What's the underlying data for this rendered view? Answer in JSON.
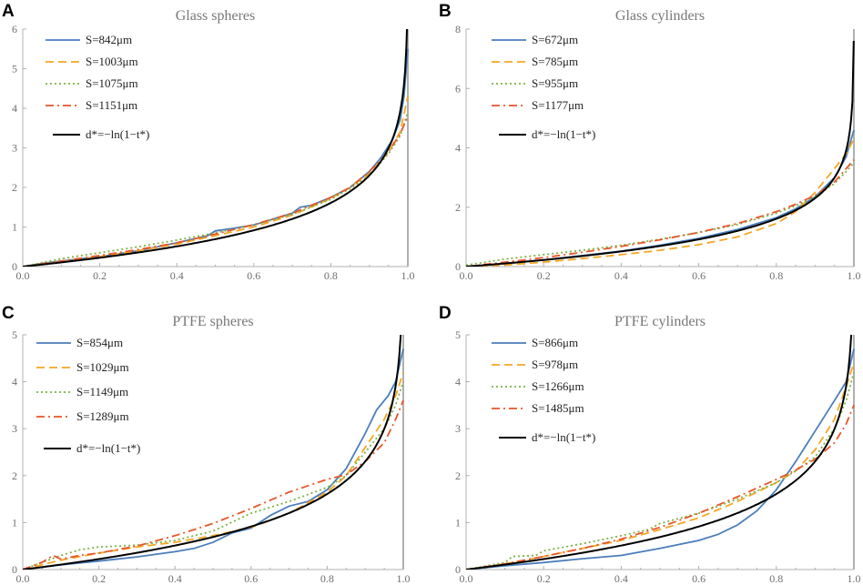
{
  "colors": {
    "series1": "#4a7ebb",
    "series2": "#f5a623",
    "series3": "#7cb342",
    "series4": "#e8562a",
    "theory": "#000000",
    "axis": "#b0b0b0",
    "ticklabel": "#6e6e6e",
    "title": "#777777"
  },
  "theory_label": "d*=−ln(1−t*)",
  "chart_data": [
    {
      "panel": "A",
      "title": "Glass spheres",
      "type": "line",
      "xlabel": "",
      "ylabel": "",
      "xlim": [
        0,
        1.0
      ],
      "ylim": [
        0,
        6
      ],
      "xticks": [
        "0.0",
        "0.2",
        "0.4",
        "0.6",
        "0.8",
        "1.0"
      ],
      "yticks": [
        "0",
        "1",
        "2",
        "3",
        "4",
        "5",
        "6"
      ],
      "series": [
        {
          "name": "S=842μm",
          "style": "solid",
          "x": [
            0,
            0.05,
            0.1,
            0.2,
            0.3,
            0.4,
            0.48,
            0.5,
            0.55,
            0.6,
            0.65,
            0.7,
            0.72,
            0.75,
            0.8,
            0.85,
            0.9,
            0.93,
            0.96,
            0.98,
            0.99,
            1.0
          ],
          "y": [
            0,
            0.08,
            0.14,
            0.25,
            0.4,
            0.6,
            0.78,
            0.9,
            0.97,
            1.05,
            1.2,
            1.35,
            1.5,
            1.55,
            1.75,
            2.0,
            2.4,
            2.75,
            3.2,
            3.7,
            4.3,
            5.5
          ]
        },
        {
          "name": "S=1003μm",
          "style": "dashed",
          "x": [
            0,
            0.1,
            0.2,
            0.3,
            0.4,
            0.5,
            0.6,
            0.7,
            0.8,
            0.85,
            0.9,
            0.95,
            0.98,
            1.0
          ],
          "y": [
            0,
            0.12,
            0.25,
            0.4,
            0.57,
            0.78,
            1.0,
            1.3,
            1.72,
            2.0,
            2.35,
            2.9,
            3.4,
            4.3
          ]
        },
        {
          "name": "S=1075μm",
          "style": "dotted",
          "x": [
            0,
            0.1,
            0.2,
            0.3,
            0.4,
            0.5,
            0.6,
            0.7,
            0.8,
            0.85,
            0.9,
            0.95,
            0.98,
            1.0
          ],
          "y": [
            0,
            0.2,
            0.35,
            0.5,
            0.67,
            0.85,
            1.05,
            1.32,
            1.7,
            1.97,
            2.3,
            2.85,
            3.3,
            3.9
          ]
        },
        {
          "name": "S=1151μm",
          "style": "dashdot",
          "x": [
            0,
            0.1,
            0.2,
            0.3,
            0.4,
            0.5,
            0.6,
            0.7,
            0.8,
            0.85,
            0.9,
            0.95,
            0.98,
            1.0
          ],
          "y": [
            0,
            0.14,
            0.28,
            0.43,
            0.6,
            0.82,
            1.06,
            1.35,
            1.75,
            2.0,
            2.4,
            2.9,
            3.35,
            3.8
          ]
        }
      ],
      "theory": {
        "name": "d*=−ln(1−t*)",
        "ymax": 6
      }
    },
    {
      "panel": "B",
      "title": "Glass cylinders",
      "type": "line",
      "xlabel": "",
      "ylabel": "",
      "xlim": [
        0,
        1.0
      ],
      "ylim": [
        0,
        8
      ],
      "xticks": [
        "0.0",
        "0.2",
        "0.4",
        "0.6",
        "0.8",
        "1.0"
      ],
      "yticks": [
        "0",
        "2",
        "4",
        "6",
        "8"
      ],
      "series": [
        {
          "name": "S=672μm",
          "style": "solid",
          "x": [
            0,
            0.1,
            0.2,
            0.3,
            0.4,
            0.5,
            0.6,
            0.7,
            0.8,
            0.85,
            0.9,
            0.95,
            0.98,
            1.0
          ],
          "y": [
            0,
            0.1,
            0.22,
            0.37,
            0.52,
            0.72,
            0.95,
            1.25,
            1.65,
            1.95,
            2.35,
            3.0,
            3.7,
            4.6
          ]
        },
        {
          "name": "S=785μm",
          "style": "dashed",
          "x": [
            0,
            0.1,
            0.2,
            0.3,
            0.4,
            0.5,
            0.6,
            0.7,
            0.8,
            0.85,
            0.9,
            0.95,
            0.98,
            1.0
          ],
          "y": [
            0,
            0.05,
            0.15,
            0.27,
            0.4,
            0.55,
            0.74,
            1.0,
            1.45,
            1.85,
            2.5,
            3.3,
            3.8,
            4.3
          ]
        },
        {
          "name": "S=955μm",
          "style": "dotted",
          "x": [
            0,
            0.1,
            0.2,
            0.3,
            0.4,
            0.5,
            0.6,
            0.7,
            0.8,
            0.85,
            0.9,
            0.95,
            0.98,
            1.0
          ],
          "y": [
            0.05,
            0.25,
            0.4,
            0.55,
            0.72,
            0.92,
            1.15,
            1.42,
            1.8,
            2.05,
            2.35,
            2.8,
            3.2,
            3.5
          ]
        },
        {
          "name": "S=1177μm",
          "style": "dashdot",
          "x": [
            0,
            0.1,
            0.2,
            0.3,
            0.4,
            0.5,
            0.6,
            0.7,
            0.8,
            0.85,
            0.9,
            0.95,
            0.98,
            1.0
          ],
          "y": [
            0,
            0.15,
            0.3,
            0.48,
            0.68,
            0.9,
            1.15,
            1.45,
            1.85,
            2.1,
            2.4,
            2.85,
            3.3,
            3.6
          ]
        }
      ],
      "theory": {
        "name": "d*=−ln(1−t*)",
        "ymax": 8
      }
    },
    {
      "panel": "C",
      "title": "PTFE spheres",
      "type": "line",
      "xlabel": "",
      "ylabel": "",
      "xlim": [
        0,
        1.0
      ],
      "ylim": [
        0,
        5
      ],
      "xticks": [
        "0.0",
        "0.2",
        "0.4",
        "0.6",
        "0.8",
        "1.0"
      ],
      "yticks": [
        "0",
        "1",
        "2",
        "3",
        "4",
        "5"
      ],
      "series": [
        {
          "name": "S=854μm",
          "style": "solid",
          "x": [
            0,
            0.1,
            0.2,
            0.3,
            0.4,
            0.45,
            0.5,
            0.55,
            0.6,
            0.65,
            0.7,
            0.75,
            0.8,
            0.85,
            0.9,
            0.93,
            0.96,
            0.98,
            1.0
          ],
          "y": [
            0,
            0.1,
            0.18,
            0.27,
            0.38,
            0.45,
            0.58,
            0.78,
            0.88,
            1.15,
            1.35,
            1.45,
            1.7,
            2.15,
            2.9,
            3.4,
            3.7,
            4.0,
            4.7
          ]
        },
        {
          "name": "S=1029μm",
          "style": "dashed",
          "x": [
            0,
            0.1,
            0.2,
            0.3,
            0.4,
            0.5,
            0.6,
            0.7,
            0.8,
            0.85,
            0.9,
            0.95,
            0.98,
            1.0
          ],
          "y": [
            0,
            0.2,
            0.35,
            0.48,
            0.58,
            0.72,
            0.9,
            1.2,
            1.65,
            2.0,
            2.6,
            3.2,
            3.7,
            4.2
          ]
        },
        {
          "name": "S=1149μm",
          "style": "dotted",
          "x": [
            0,
            0.05,
            0.1,
            0.15,
            0.2,
            0.3,
            0.4,
            0.5,
            0.6,
            0.7,
            0.8,
            0.85,
            0.9,
            0.95,
            0.98,
            1.0
          ],
          "y": [
            0,
            0.15,
            0.3,
            0.42,
            0.48,
            0.52,
            0.62,
            0.82,
            1.2,
            1.45,
            1.75,
            2.0,
            2.5,
            3.0,
            3.5,
            4.0
          ]
        },
        {
          "name": "S=1289μm",
          "style": "dashdot",
          "x": [
            0,
            0.05,
            0.08,
            0.1,
            0.15,
            0.2,
            0.3,
            0.4,
            0.5,
            0.6,
            0.7,
            0.8,
            0.85,
            0.9,
            0.95,
            0.98,
            1.0
          ],
          "y": [
            0,
            0.15,
            0.3,
            0.22,
            0.3,
            0.35,
            0.5,
            0.72,
            0.98,
            1.3,
            1.65,
            1.92,
            2.02,
            2.3,
            2.7,
            3.2,
            3.6
          ]
        }
      ],
      "theory": {
        "name": "d*=−ln(1−t*)",
        "ymax": 5
      }
    },
    {
      "panel": "D",
      "title": "PTFE cylinders",
      "type": "line",
      "xlabel": "",
      "ylabel": "",
      "xlim": [
        0,
        1.0
      ],
      "ylim": [
        0,
        5
      ],
      "xticks": [
        "0.0",
        "0.2",
        "0.4",
        "0.6",
        "0.8",
        "1.0"
      ],
      "yticks": [
        "0",
        "1",
        "2",
        "3",
        "4",
        "5"
      ],
      "series": [
        {
          "name": "S=866μm",
          "style": "solid",
          "x": [
            0,
            0.1,
            0.2,
            0.3,
            0.4,
            0.5,
            0.6,
            0.65,
            0.7,
            0.75,
            0.8,
            0.85,
            0.9,
            0.95,
            0.98,
            1.0
          ],
          "y": [
            0,
            0.08,
            0.15,
            0.23,
            0.3,
            0.45,
            0.62,
            0.75,
            0.95,
            1.25,
            1.7,
            2.3,
            2.95,
            3.6,
            4.0,
            4.7
          ]
        },
        {
          "name": "S=978μm",
          "style": "dashed",
          "x": [
            0,
            0.1,
            0.2,
            0.3,
            0.4,
            0.5,
            0.6,
            0.7,
            0.8,
            0.85,
            0.9,
            0.95,
            0.98,
            1.0
          ],
          "y": [
            0,
            0.12,
            0.28,
            0.45,
            0.62,
            0.85,
            1.1,
            1.45,
            1.85,
            2.1,
            2.55,
            3.2,
            3.9,
            4.4
          ]
        },
        {
          "name": "S=1266μm",
          "style": "dotted",
          "x": [
            0,
            0.1,
            0.12,
            0.18,
            0.2,
            0.3,
            0.4,
            0.47,
            0.5,
            0.6,
            0.7,
            0.8,
            0.85,
            0.9,
            0.95,
            0.98,
            1.0
          ],
          "y": [
            0,
            0.15,
            0.28,
            0.3,
            0.4,
            0.55,
            0.72,
            0.85,
            0.98,
            1.2,
            1.5,
            1.85,
            2.1,
            2.4,
            3.0,
            3.6,
            4.2
          ]
        },
        {
          "name": "S=1485μm",
          "style": "dashdot",
          "x": [
            0,
            0.1,
            0.2,
            0.3,
            0.4,
            0.5,
            0.6,
            0.7,
            0.8,
            0.85,
            0.9,
            0.95,
            0.98,
            1.0
          ],
          "y": [
            0,
            0.12,
            0.28,
            0.45,
            0.65,
            0.9,
            1.2,
            1.55,
            1.92,
            2.12,
            2.35,
            2.7,
            3.1,
            3.5
          ]
        }
      ],
      "theory": {
        "name": "d*=−ln(1−t*)",
        "ymax": 5
      }
    }
  ]
}
